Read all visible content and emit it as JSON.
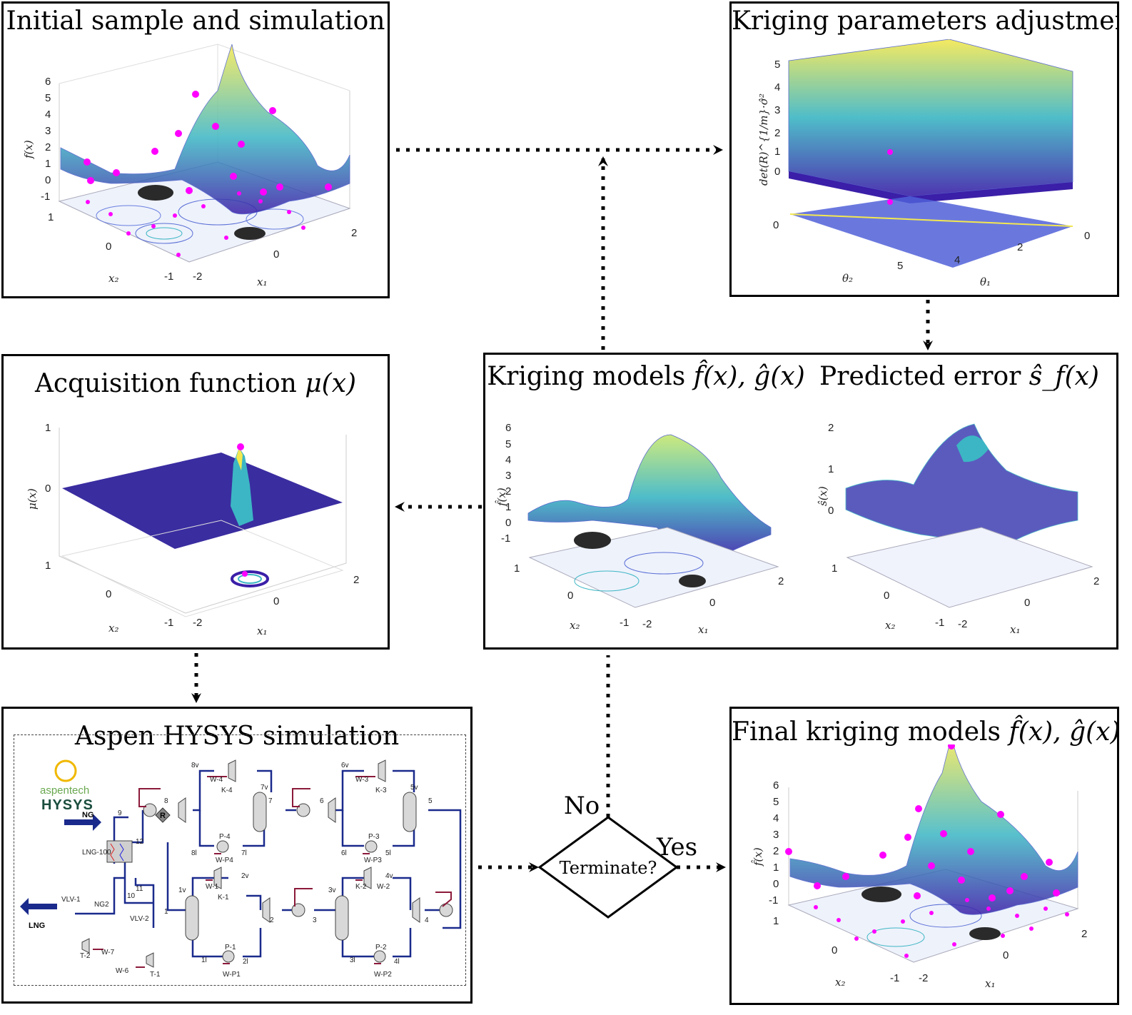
{
  "panels": {
    "initial": {
      "title": "Initial sample and simulation",
      "z_ticks": [
        "6",
        "5",
        "4",
        "3",
        "2",
        "1",
        "0",
        "-1"
      ],
      "z_label": "f(x)",
      "x2_ticks": [
        "1",
        "0",
        "-1"
      ],
      "x1_ticks": [
        "-2",
        "0",
        "2"
      ],
      "x2_label": "x₂",
      "x1_label": "x₁"
    },
    "kriging_params": {
      "title": "Kriging parameters adjustment",
      "z_ticks": [
        "5",
        "4",
        "3",
        "2",
        "1",
        "0"
      ],
      "z_label": "det(R)^{1/m}·σ̂²",
      "theta2_ticks": [
        "0",
        "5"
      ],
      "theta1_ticks": [
        "4",
        "2",
        "0"
      ],
      "theta2_label": "θ₂",
      "theta1_label": "θ₁"
    },
    "acquisition": {
      "title_text": "Acquisition function ",
      "title_math": "μ(x)",
      "z_ticks": [
        "1",
        "0"
      ],
      "z_label": "μ(x)",
      "x2_ticks": [
        "1",
        "0",
        "-1"
      ],
      "x1_ticks": [
        "-2",
        "0",
        "2"
      ],
      "x2_label": "x₂",
      "x1_label": "x₁"
    },
    "kriging_models": {
      "title_left_text": "Kriging models ",
      "title_left_math": "f̂(x),  ĝ(x)",
      "title_right_text": "Predicted error ",
      "title_right_math": "ŝ_f(x)",
      "left_z_ticks": [
        "6",
        "5",
        "4",
        "3",
        "2",
        "1",
        "0",
        "-1"
      ],
      "left_z_label": "f̂(x)",
      "right_z_ticks": [
        "2",
        "1",
        "0"
      ],
      "right_z_label": "ŝ(x)",
      "x2_ticks": [
        "1",
        "0",
        "-1"
      ],
      "x1_ticks": [
        "-2",
        "0",
        "2"
      ],
      "x2_label": "x₂",
      "x1_label": "x₁"
    },
    "hysys": {
      "title": "Aspen HYSYS simulation",
      "logo_top": "aspentech",
      "logo_bottom": "HYSYS",
      "labels": {
        "ng": "NG",
        "lng": "LNG",
        "lng100": "LNG-100",
        "ng2": "NG2",
        "vlv1": "VLV-1",
        "vlv2": "VLV-2",
        "t1": "T-1",
        "t2": "T-2",
        "w6": "W-6",
        "w7": "W-7",
        "s9": "9",
        "s10": "10",
        "s11": "11",
        "s12": "12",
        "s1": "1",
        "r": "R",
        "s8": "8",
        "s8v": "8v",
        "s8l": "8l",
        "s7": "7",
        "s7v": "7v",
        "s7l": "7l",
        "k4": "K-4",
        "w4": "W-4",
        "p4": "P-4",
        "wp4": "W-P4",
        "s6": "6",
        "s6v": "6v",
        "s6l": "6l",
        "s5": "5",
        "s5v": "5v",
        "s5l": "5l",
        "k3": "K-3",
        "w3": "W-3",
        "p3": "P-3",
        "wp3": "W-P3",
        "s1v": "1v",
        "s1l": "1l",
        "s2": "2",
        "s2v": "2v",
        "s2l": "2l",
        "k1": "K-1",
        "w1": "W-1",
        "p1": "P-1",
        "wp1": "W-P1",
        "s3": "3",
        "s3v": "3v",
        "s3l": "3l",
        "s4": "4",
        "s4v": "4v",
        "s4l": "4l",
        "k2": "K-2",
        "w2": "W-2",
        "p2": "P-2",
        "wp2": "W-P2"
      }
    },
    "final": {
      "title_text": "Final kriging models ",
      "title_math": "f̂(x),  ĝ(x)",
      "z_ticks": [
        "6",
        "5",
        "4",
        "3",
        "2",
        "1",
        "0",
        "-1"
      ],
      "z_label": "f̂(x)",
      "x2_ticks": [
        "1",
        "0",
        "-1"
      ],
      "x1_ticks": [
        "-2",
        "0",
        "2"
      ],
      "x2_label": "x₂",
      "x1_label": "x₁"
    }
  },
  "decision": {
    "question": "Terminate?",
    "no_label": "No",
    "yes_label": "Yes"
  },
  "colors": {
    "magenta": "#ff00ff",
    "surface_low": "#3b1fa8",
    "surface_mid": "#3cb6c4",
    "surface_high": "#f4e850",
    "contour": "#5a6fd6",
    "blob": "#2a2a2a",
    "pipe": "#1a2a8c",
    "energy": "#8b1a3a"
  }
}
